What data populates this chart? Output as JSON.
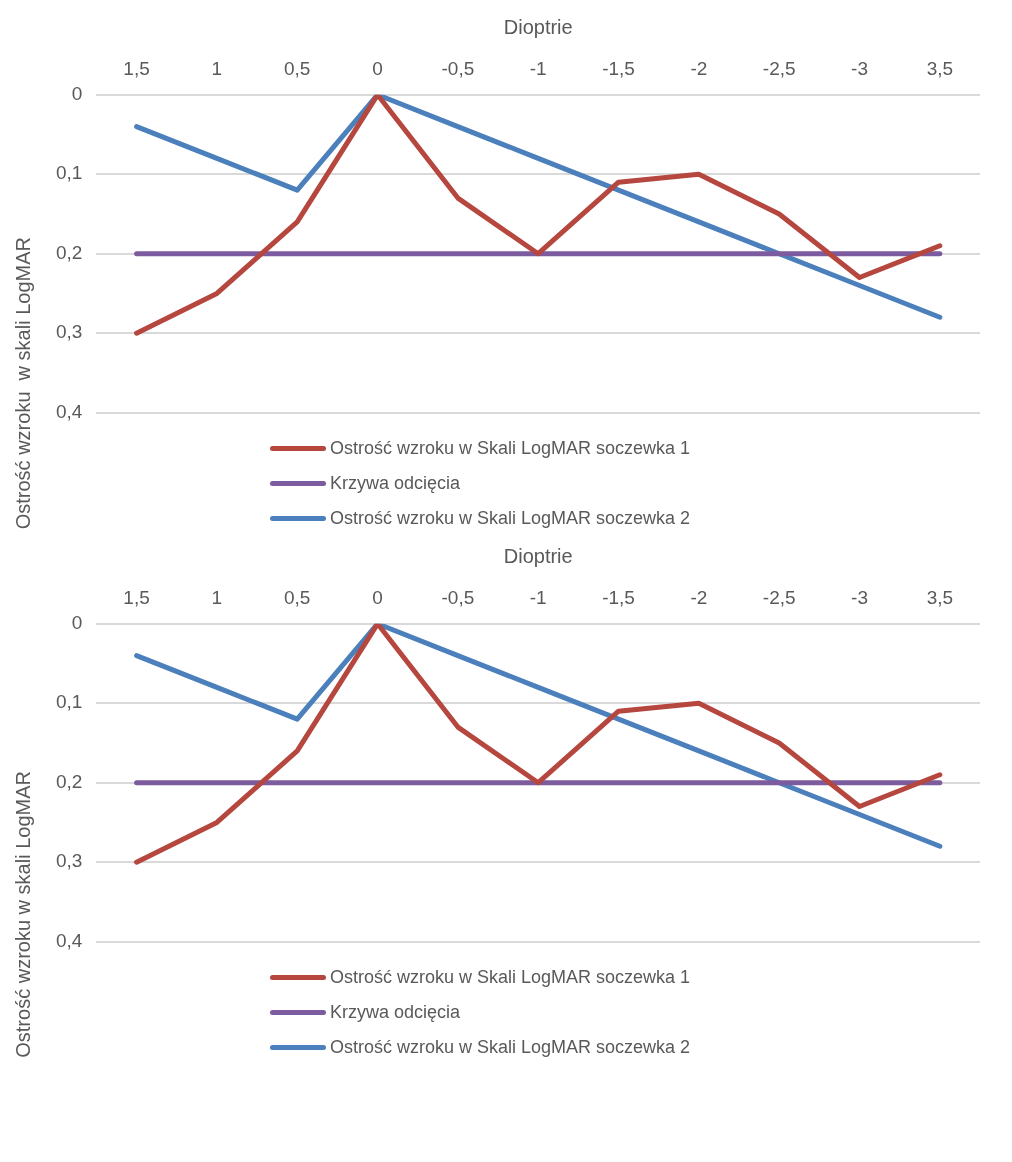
{
  "chart_data": [
    {
      "type": "line",
      "xlabel": "Dioptrie",
      "ylabel": "Ostrość wzroku  w skali LogMAR",
      "categories": [
        "1,5",
        "1",
        "0,5",
        "0",
        "-0,5",
        "-1",
        "-1,5",
        "-2",
        "-2,5",
        "-3",
        "3,5"
      ],
      "series": [
        {
          "name": "Ostrość wzroku w Skali LogMAR soczewka 1",
          "color": "#b5473f",
          "values": [
            0.3,
            0.25,
            0.16,
            0,
            0.13,
            0.2,
            0.11,
            0.1,
            0.15,
            0.23,
            0.19
          ]
        },
        {
          "name": "Krzywa odcięcia",
          "color": "#7c5b9f",
          "values": [
            0.2,
            0.2,
            0.2,
            0.2,
            0.2,
            0.2,
            0.2,
            0.2,
            0.2,
            0.2,
            0.2
          ]
        },
        {
          "name": "Ostrość wzroku w Skali LogMAR soczewka 2",
          "color": "#4c80bc",
          "values": [
            0.04,
            0.08,
            0.12,
            0,
            0.04,
            0.08,
            0.12,
            0.16,
            0.2,
            0.24,
            0.28
          ]
        }
      ],
      "ylim": [
        0.4,
        0
      ],
      "yticks": [
        0,
        {
          "value": 0.1,
          "label": "0,1"
        },
        {
          "value": 0.2,
          "label": "0,2"
        },
        {
          "value": 0.3,
          "label": "0,3"
        },
        {
          "value": 0.4,
          "label": "0,4"
        }
      ],
      "grid": "y",
      "legend": "bottom",
      "marker": "none",
      "line_style": "solid"
    },
    {
      "type": "line",
      "xlabel": "Dioptrie",
      "ylabel": "Ostrość wzroku w skali LogMAR",
      "categories": [
        "1,5",
        "1",
        "0,5",
        "0",
        "-0,5",
        "-1",
        "-1,5",
        "-2",
        "-2,5",
        "-3",
        "3,5"
      ],
      "series": [
        {
          "name": "Ostrość wzroku w Skali LogMAR soczewka 1",
          "color": "#b5473f",
          "values": [
            0.3,
            0.25,
            0.16,
            0,
            0.13,
            0.2,
            0.11,
            0.1,
            0.15,
            0.23,
            0.19
          ]
        },
        {
          "name": "Krzywa odcięcia",
          "color": "#7c5b9f",
          "values": [
            0.2,
            0.2,
            0.2,
            0.2,
            0.2,
            0.2,
            0.2,
            0.2,
            0.2,
            0.2,
            0.2
          ]
        },
        {
          "name": "Ostrość wzroku w Skali LogMAR soczewka 2",
          "color": "#4c80bc",
          "values": [
            0.04,
            0.08,
            0.12,
            0,
            0.04,
            0.08,
            0.12,
            0.16,
            0.2,
            0.24,
            0.28
          ]
        }
      ],
      "ylim": [
        0.4,
        0
      ],
      "yticks": [
        0,
        {
          "value": 0.1,
          "label": "0,1"
        },
        {
          "value": 0.2,
          "label": "0,2"
        },
        {
          "value": 0.3,
          "label": "0,3"
        },
        {
          "value": 0.4,
          "label": "0,4"
        }
      ],
      "grid": "y",
      "legend": "bottom",
      "marker": "none",
      "line_style": "solid"
    }
  ]
}
